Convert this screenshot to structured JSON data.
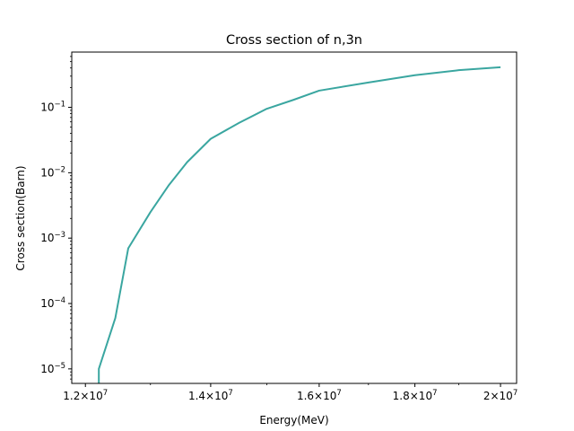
{
  "chart_data": {
    "type": "line",
    "title": "Cross section of n,3n",
    "xlabel": "Energy(MeV)",
    "ylabel": "Cross section(Barn)",
    "xscale": "log",
    "yscale": "log",
    "xlim": [
      11800000,
      20400000
    ],
    "ylim": [
      6e-06,
      0.7
    ],
    "grid": false,
    "legend": "none",
    "line_color": "#3aa6a0",
    "x_ticks": [
      {
        "value": 12000000,
        "mantissa": "1.2",
        "base": "10",
        "exp": "7"
      },
      {
        "value": 14000000,
        "mantissa": "1.4",
        "base": "10",
        "exp": "7"
      },
      {
        "value": 16000000,
        "mantissa": "1.6",
        "base": "10",
        "exp": "7"
      },
      {
        "value": 18000000,
        "mantissa": "1.8",
        "base": "10",
        "exp": "7"
      },
      {
        "value": 20000000,
        "mantissa": "2",
        "base": "10",
        "exp": "7"
      }
    ],
    "y_ticks": [
      {
        "value": 1e-05,
        "base": "10",
        "exp": "−5"
      },
      {
        "value": 0.0001,
        "base": "10",
        "exp": "−4"
      },
      {
        "value": 0.001,
        "base": "10",
        "exp": "−3"
      },
      {
        "value": 0.01,
        "base": "10",
        "exp": "−2"
      },
      {
        "value": 0.1,
        "base": "10",
        "exp": "−1"
      }
    ],
    "series": [
      {
        "x": [
          12200000,
          12200000,
          12450000,
          12650000,
          13000000,
          13300000,
          13600000,
          14000000,
          14500000,
          15000000,
          15500000,
          16000000,
          17000000,
          18000000,
          19000000,
          20000000
        ],
        "y": [
          6e-06,
          1e-05,
          6e-05,
          0.0007,
          0.0025,
          0.0065,
          0.0145,
          0.033,
          0.058,
          0.095,
          0.13,
          0.18,
          0.24,
          0.31,
          0.37,
          0.41
        ]
      }
    ]
  }
}
